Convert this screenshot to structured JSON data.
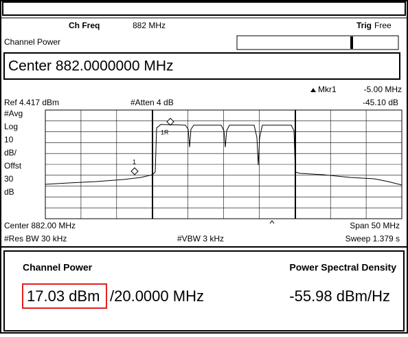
{
  "header": {
    "mode_label": "Ch Freq",
    "mode_value": "882 MHz",
    "trig_label": "Trig",
    "trig_value": "Free",
    "measurement": "Channel Power",
    "center": "Center 882.0000000 MHz"
  },
  "marker": {
    "name": "Mkr1",
    "delta_freq": "-5.00 MHz",
    "delta_amp": "-45.10 dB"
  },
  "settings": {
    "ref": "Ref 4.417 dBm",
    "atten": "#Atten 4 dB",
    "scale": [
      "#Avg",
      "Log",
      "10",
      "dB/",
      "Offst",
      "30",
      "dB"
    ]
  },
  "plot": {
    "marker_label": "1",
    "ref_marker_label": "1R"
  },
  "footer": {
    "center": "Center 882.00 MHz",
    "span": "Span 50 MHz",
    "res_bw": "#Res BW 30 kHz",
    "vbw": "#VBW 3 kHz",
    "sweep": "Sweep 1.379 s"
  },
  "results": {
    "power_title": "Channel Power",
    "psd_title": "Power Spectral Density",
    "power": "17.03 dBm",
    "bandwidth": "/20.0000 MHz",
    "psd": "-55.98 dBm/Hz"
  }
}
